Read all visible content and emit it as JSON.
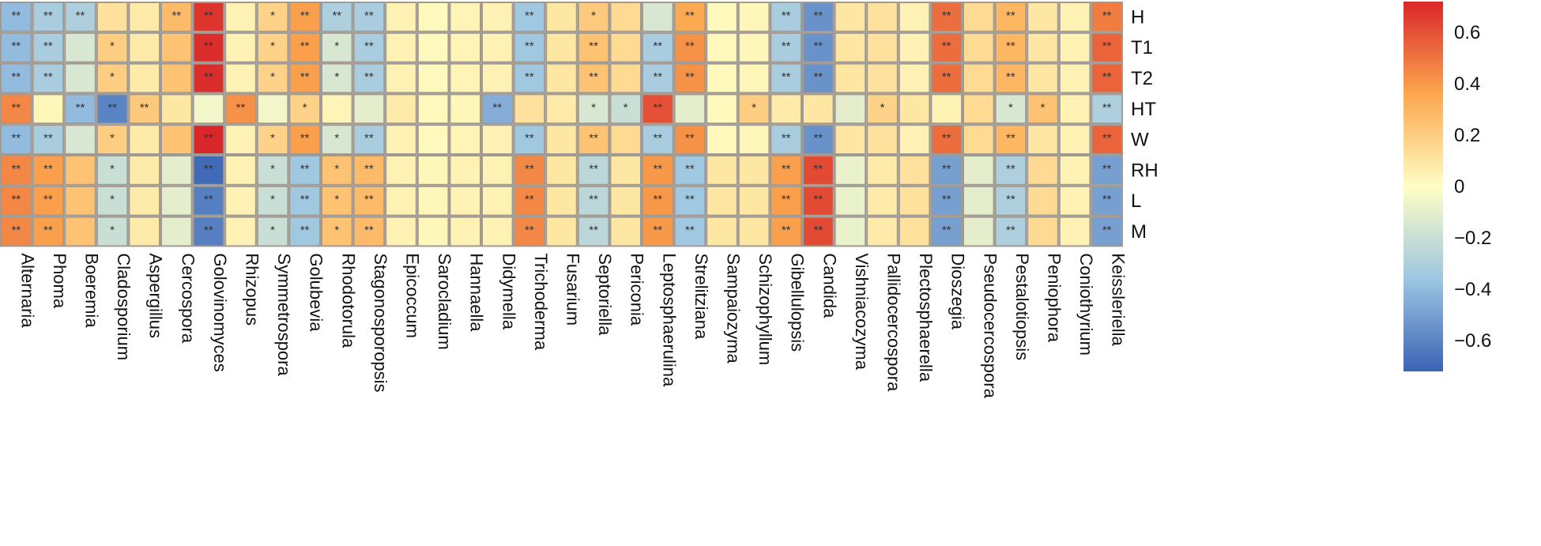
{
  "chart_data": {
    "type": "heatmap",
    "title": "",
    "rows": [
      "H",
      "T1",
      "T2",
      "HT",
      "W",
      "RH",
      "L",
      "M"
    ],
    "columns": [
      "Alternaria",
      "Phoma",
      "Boeremia",
      "Cladosporium",
      "Aspergillus",
      "Cercospora",
      "Golovinomyces",
      "Rhizopus",
      "Symmetrospora",
      "Golubevia",
      "Rhodotorula",
      "Stagonosporopsis",
      "Epicoccum",
      "Sarocladium",
      "Hannaella",
      "Didymella",
      "Trichoderma",
      "Fusarium",
      "Septoriella",
      "Periconia",
      "Leptosphaerulina",
      "Strelitziana",
      "Sampaiozyma",
      "Schizophyllum",
      "Gibellulopsis",
      "Candida",
      "Vishniacozyma",
      "Pallidocercospora",
      "Plectosphaerella",
      "Dioszegia",
      "Pseudocercospora",
      "Pestalotiopsis",
      "Peniophora",
      "Coniothyrium",
      "Keissleriella"
    ],
    "values": [
      [
        -0.4,
        -0.32,
        -0.3,
        0.12,
        0.08,
        0.28,
        0.68,
        0.05,
        0.18,
        0.38,
        -0.3,
        -0.32,
        0.05,
        0.02,
        0.04,
        0.05,
        -0.35,
        0.1,
        0.22,
        0.15,
        -0.15,
        0.35,
        0.02,
        0.03,
        -0.32,
        -0.55,
        0.1,
        0.12,
        0.05,
        0.52,
        0.15,
        0.3,
        0.1,
        0.05,
        0.48
      ],
      [
        -0.4,
        -0.32,
        -0.15,
        0.2,
        0.08,
        0.25,
        0.7,
        0.05,
        0.18,
        0.38,
        -0.15,
        -0.32,
        0.05,
        0.02,
        0.04,
        0.05,
        -0.35,
        0.1,
        0.25,
        0.15,
        -0.32,
        0.42,
        0.02,
        0.03,
        -0.32,
        -0.55,
        0.1,
        0.12,
        0.05,
        0.52,
        0.15,
        0.3,
        0.1,
        0.05,
        0.55
      ],
      [
        -0.4,
        -0.32,
        -0.15,
        0.2,
        0.08,
        0.25,
        0.7,
        0.05,
        0.18,
        0.38,
        -0.15,
        -0.32,
        0.05,
        0.02,
        0.04,
        0.05,
        -0.35,
        0.1,
        0.25,
        0.15,
        -0.32,
        0.42,
        0.02,
        0.03,
        -0.32,
        -0.55,
        0.1,
        0.12,
        0.05,
        0.52,
        0.15,
        0.3,
        0.1,
        0.05,
        0.55
      ],
      [
        0.45,
        0.03,
        -0.4,
        -0.6,
        0.22,
        0.1,
        -0.05,
        0.42,
        -0.05,
        0.18,
        0.04,
        -0.1,
        0.08,
        0.02,
        0.03,
        -0.45,
        0.12,
        0.08,
        -0.15,
        -0.2,
        0.6,
        -0.1,
        0.02,
        0.2,
        0.08,
        0.1,
        -0.1,
        0.18,
        0.1,
        0.05,
        0.15,
        -0.15,
        0.25,
        0.05,
        -0.3
      ],
      [
        -0.4,
        -0.32,
        -0.15,
        0.2,
        0.08,
        0.25,
        0.72,
        0.05,
        0.18,
        0.38,
        -0.15,
        -0.32,
        0.05,
        0.02,
        0.04,
        0.05,
        -0.35,
        0.1,
        0.25,
        0.15,
        -0.32,
        0.42,
        0.02,
        0.03,
        -0.32,
        -0.55,
        0.1,
        0.12,
        0.05,
        0.52,
        0.15,
        0.3,
        0.1,
        0.05,
        0.55
      ],
      [
        0.45,
        0.38,
        0.25,
        -0.2,
        0.08,
        -0.1,
        -0.7,
        0.05,
        -0.2,
        -0.35,
        0.25,
        0.28,
        0.05,
        0.03,
        0.05,
        0.05,
        0.45,
        0.1,
        -0.25,
        0.1,
        0.4,
        -0.35,
        0.1,
        0.1,
        0.38,
        0.62,
        -0.08,
        0.08,
        0.12,
        -0.5,
        -0.1,
        -0.3,
        0.15,
        0.05,
        -0.5
      ],
      [
        0.45,
        0.38,
        0.25,
        -0.2,
        0.08,
        -0.1,
        -0.62,
        0.05,
        -0.2,
        -0.35,
        0.25,
        0.28,
        0.05,
        0.03,
        0.05,
        0.05,
        0.45,
        0.1,
        -0.25,
        0.1,
        0.4,
        -0.35,
        0.1,
        0.1,
        0.38,
        0.62,
        -0.08,
        0.08,
        0.12,
        -0.5,
        -0.1,
        -0.3,
        0.15,
        0.05,
        -0.5
      ],
      [
        0.45,
        0.38,
        0.25,
        -0.2,
        0.08,
        -0.1,
        -0.62,
        0.05,
        -0.2,
        -0.35,
        0.25,
        0.28,
        0.05,
        0.03,
        0.05,
        0.05,
        0.45,
        0.1,
        -0.25,
        0.1,
        0.4,
        -0.35,
        0.1,
        0.1,
        0.38,
        0.62,
        -0.08,
        0.08,
        0.12,
        -0.5,
        -0.1,
        -0.3,
        0.15,
        0.05,
        -0.5
      ]
    ],
    "significance": [
      [
        "**",
        "**",
        "**",
        "",
        "",
        "**",
        "**",
        "",
        "*",
        "**",
        "**",
        "**",
        "",
        "",
        "",
        "",
        "**",
        "",
        "*",
        "",
        "",
        "**",
        "",
        "",
        "**",
        "**",
        "",
        "",
        "",
        "**",
        "",
        "**",
        "",
        "",
        "**"
      ],
      [
        "**",
        "**",
        "",
        "*",
        "",
        "",
        "**",
        "",
        "*",
        "**",
        "*",
        "**",
        "",
        "",
        "",
        "",
        "**",
        "",
        "**",
        "",
        "**",
        "**",
        "",
        "",
        "**",
        "**",
        "",
        "",
        "",
        "**",
        "",
        "**",
        "",
        "",
        "**"
      ],
      [
        "**",
        "**",
        "",
        "*",
        "",
        "",
        "**",
        "",
        "*",
        "**",
        "*",
        "**",
        "",
        "",
        "",
        "",
        "**",
        "",
        "**",
        "",
        "**",
        "**",
        "",
        "",
        "**",
        "**",
        "",
        "",
        "",
        "**",
        "",
        "**",
        "",
        "",
        "**"
      ],
      [
        "**",
        "",
        "**",
        "**",
        "**",
        "",
        "",
        "**",
        "",
        "*",
        "",
        "",
        "",
        "",
        "",
        "**",
        "",
        "",
        "*",
        "*",
        "**",
        "",
        "",
        "*",
        "",
        "",
        "",
        "*",
        "",
        "",
        "",
        "*",
        "*",
        "",
        "**"
      ],
      [
        "**",
        "**",
        "",
        "*",
        "",
        "",
        "**",
        "",
        "*",
        "**",
        "*",
        "**",
        "",
        "",
        "",
        "",
        "**",
        "",
        "**",
        "",
        "**",
        "**",
        "",
        "",
        "**",
        "**",
        "",
        "",
        "",
        "**",
        "",
        "**",
        "",
        "",
        "**"
      ],
      [
        "**",
        "**",
        "",
        "*",
        "",
        "",
        "**",
        "",
        "*",
        "**",
        "*",
        "**",
        "",
        "",
        "",
        "",
        "**",
        "",
        "**",
        "",
        "**",
        "**",
        "",
        "",
        "**",
        "**",
        "",
        "",
        "",
        "**",
        "",
        "**",
        "",
        "",
        "**"
      ],
      [
        "**",
        "**",
        "",
        "*",
        "",
        "",
        "**",
        "",
        "*",
        "**",
        "*",
        "**",
        "",
        "",
        "",
        "",
        "**",
        "",
        "**",
        "",
        "**",
        "**",
        "",
        "",
        "**",
        "**",
        "",
        "",
        "",
        "**",
        "",
        "**",
        "",
        "",
        "**"
      ],
      [
        "**",
        "**",
        "",
        "*",
        "",
        "",
        "**",
        "",
        "*",
        "**",
        "*",
        "**",
        "",
        "",
        "",
        "",
        "**",
        "",
        "**",
        "",
        "**",
        "**",
        "",
        "",
        "**",
        "**",
        "",
        "",
        "",
        "**",
        "",
        "**",
        "",
        "",
        "**"
      ]
    ],
    "colorbar": {
      "min": -0.72,
      "max": 0.72,
      "ticks": [
        0.6,
        0.4,
        0.2,
        0,
        -0.2,
        -0.4,
        -0.6
      ],
      "tick_labels": [
        "0.6",
        "0.4",
        "0.2",
        "0",
        "−0.2",
        "−0.4",
        "−0.6"
      ],
      "colors": [
        "#3a63b5",
        "#9ec6e2",
        "#fffec4",
        "#fca74e",
        "#d9262a"
      ]
    },
    "cell_border_color": "#a09a92"
  }
}
